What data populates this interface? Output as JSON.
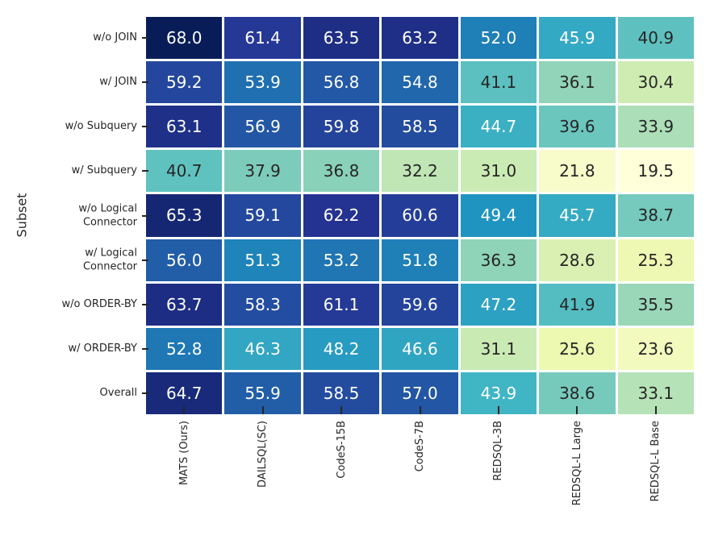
{
  "chart_data": {
    "type": "heatmap",
    "title": "",
    "xlabel": "",
    "ylabel": "Subset",
    "columns": [
      "MATS (Ours)",
      "DAILSQL(SC)",
      "CodeS-15B",
      "CodeS-7B",
      "REDSQL-3B",
      "REDSQL-L Large",
      "REDSQL-L Base"
    ],
    "rows": [
      "w/o JOIN",
      "w/ JOIN",
      "w/o Subquery",
      "w/ Subquery",
      "w/o Logical\nConnector",
      "w/ Logical\nConnector",
      "w/o ORDER-BY",
      "w/ ORDER-BY",
      "Overall"
    ],
    "values": [
      [
        68.0,
        61.4,
        63.5,
        63.2,
        52.0,
        45.9,
        40.9
      ],
      [
        59.2,
        53.9,
        56.8,
        54.8,
        41.1,
        36.1,
        30.4
      ],
      [
        63.1,
        56.9,
        59.8,
        58.5,
        44.7,
        39.6,
        33.9
      ],
      [
        40.7,
        37.9,
        36.8,
        32.2,
        31.0,
        21.8,
        19.5
      ],
      [
        65.3,
        59.1,
        62.2,
        60.6,
        49.4,
        45.7,
        38.7
      ],
      [
        56.0,
        51.3,
        53.2,
        51.8,
        36.3,
        28.6,
        25.3
      ],
      [
        63.7,
        58.3,
        61.1,
        59.6,
        47.2,
        41.9,
        35.5
      ],
      [
        52.8,
        46.3,
        48.2,
        46.6,
        31.1,
        25.6,
        23.6
      ],
      [
        64.7,
        55.9,
        58.5,
        57.0,
        43.9,
        38.6,
        33.1
      ]
    ],
    "value_format_decimals": 1,
    "vmin": 19.5,
    "vmax": 68.0,
    "colormap": "YlGnBu",
    "colormap_stops": [
      {
        "pos": 0.0,
        "color": "#ffffd9"
      },
      {
        "pos": 0.125,
        "color": "#edf8b1"
      },
      {
        "pos": 0.25,
        "color": "#c7e9b4"
      },
      {
        "pos": 0.375,
        "color": "#7fcdbb"
      },
      {
        "pos": 0.5,
        "color": "#41b6c4"
      },
      {
        "pos": 0.625,
        "color": "#1d91c0"
      },
      {
        "pos": 0.75,
        "color": "#225ea8"
      },
      {
        "pos": 0.875,
        "color": "#253494"
      },
      {
        "pos": 1.0,
        "color": "#081d58"
      }
    ],
    "annotation_text_light": "#ffffff",
    "annotation_text_dark": "#262626",
    "grid_line_color": "#ffffff",
    "tick_color": "#262626",
    "legend": "none",
    "grid": "off"
  }
}
